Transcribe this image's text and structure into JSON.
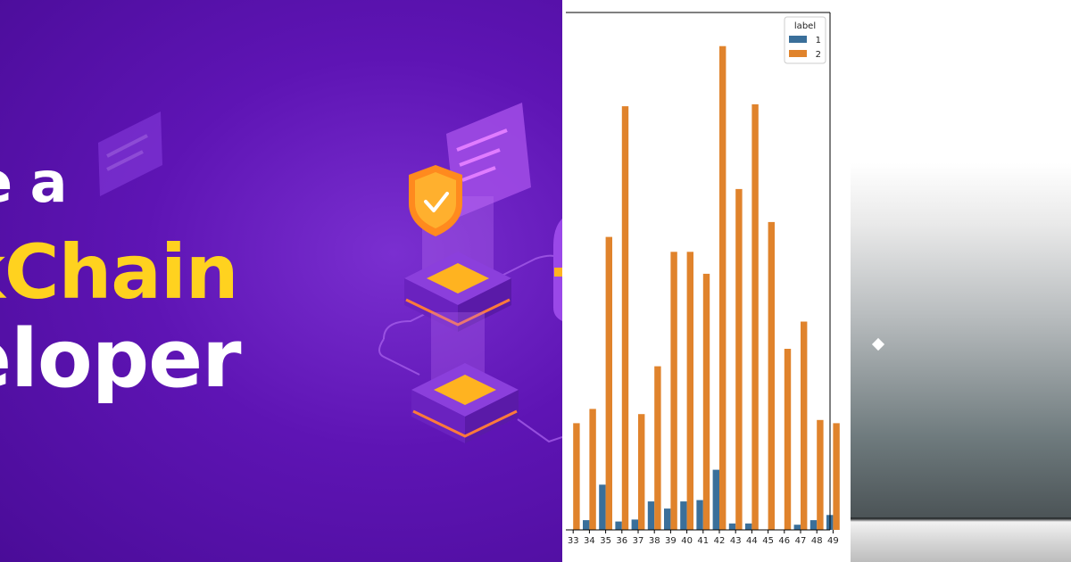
{
  "banner": {
    "line1": "e a",
    "line2": "kChain",
    "line3": "eloper",
    "colors": {
      "background": "#5e14b4",
      "accent": "#ffd21f",
      "text": "#ffffff"
    }
  },
  "chart_data": {
    "type": "bar",
    "categories": [
      "33",
      "34",
      "35",
      "36",
      "37",
      "38",
      "39",
      "40",
      "41",
      "42",
      "43",
      "44",
      "45",
      "46",
      "47",
      "48",
      "49"
    ],
    "legend": {
      "title": "label",
      "placement": "top-right"
    },
    "series": [
      {
        "name": "1",
        "color": "#3a6f9a",
        "values": [
          0,
          1.5,
          7.0,
          1.3,
          1.6,
          4.4,
          3.3,
          4.4,
          4.6,
          9.3,
          1.0,
          1.0,
          0,
          0,
          0.8,
          1.5,
          2.3
        ]
      },
      {
        "name": "2",
        "color": "#e0832c",
        "values": [
          16.5,
          18.7,
          45.3,
          65.5,
          17.9,
          25.3,
          43.0,
          43.0,
          39.6,
          74.8,
          52.7,
          65.8,
          47.6,
          28.0,
          32.2,
          17.0,
          16.5
        ]
      }
    ],
    "ylim": [
      0,
      80
    ],
    "grid": false,
    "xlabel": "",
    "ylabel": ""
  }
}
